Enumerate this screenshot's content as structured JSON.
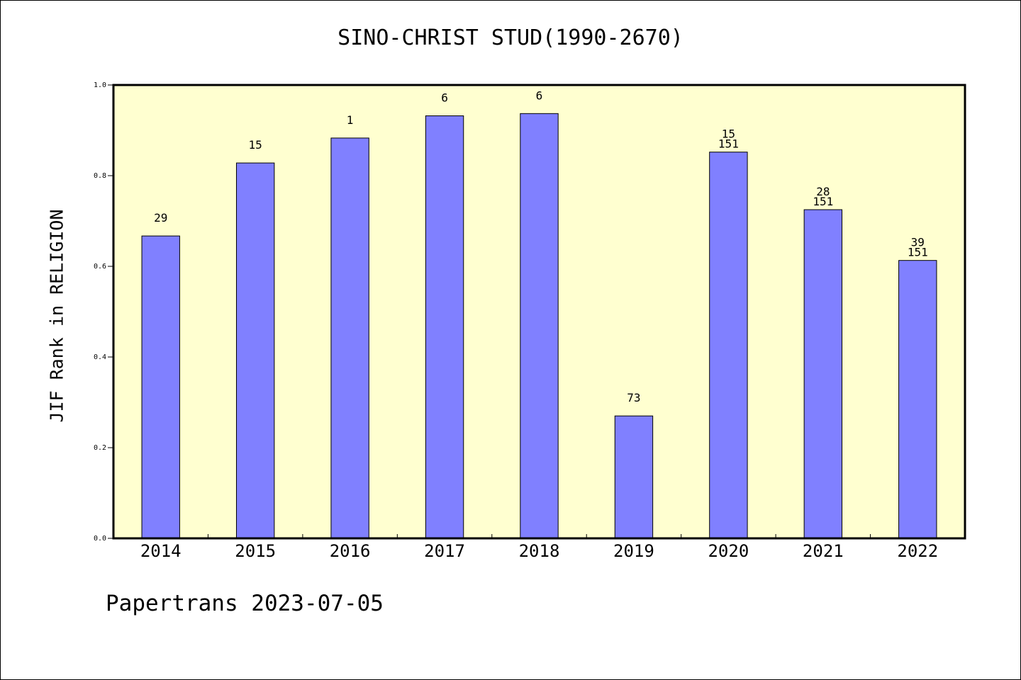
{
  "chart_data": {
    "type": "bar",
    "title": "SINO-CHRIST STUD(1990-2670)",
    "xlabel": "",
    "ylabel": "JIF Rank in RELIGION",
    "ylim": [
      0,
      1.0
    ],
    "yticks": [
      "0.0",
      "0.2",
      "0.4",
      "0.6",
      "0.8",
      "1.0"
    ],
    "categories": [
      "2014",
      "2015",
      "2016",
      "2017",
      "2018",
      "2019",
      "2020",
      "2021",
      "2022"
    ],
    "values": [
      0.667,
      0.828,
      0.883,
      0.932,
      0.937,
      0.27,
      0.852,
      0.725,
      0.613
    ],
    "labels": [
      [
        "29"
      ],
      [
        "15"
      ],
      [
        "1"
      ],
      [
        "6"
      ],
      [
        "6"
      ],
      [
        "73"
      ],
      [
        "15",
        "151"
      ],
      [
        "28",
        "151"
      ],
      [
        "39",
        "151"
      ]
    ],
    "grid": false,
    "colors": {
      "bar_fill": "#8080ff",
      "plot_background": "#ffffd0",
      "axis": "#000000"
    }
  },
  "footer": {
    "text": "Papertrans 2023-07-05"
  }
}
